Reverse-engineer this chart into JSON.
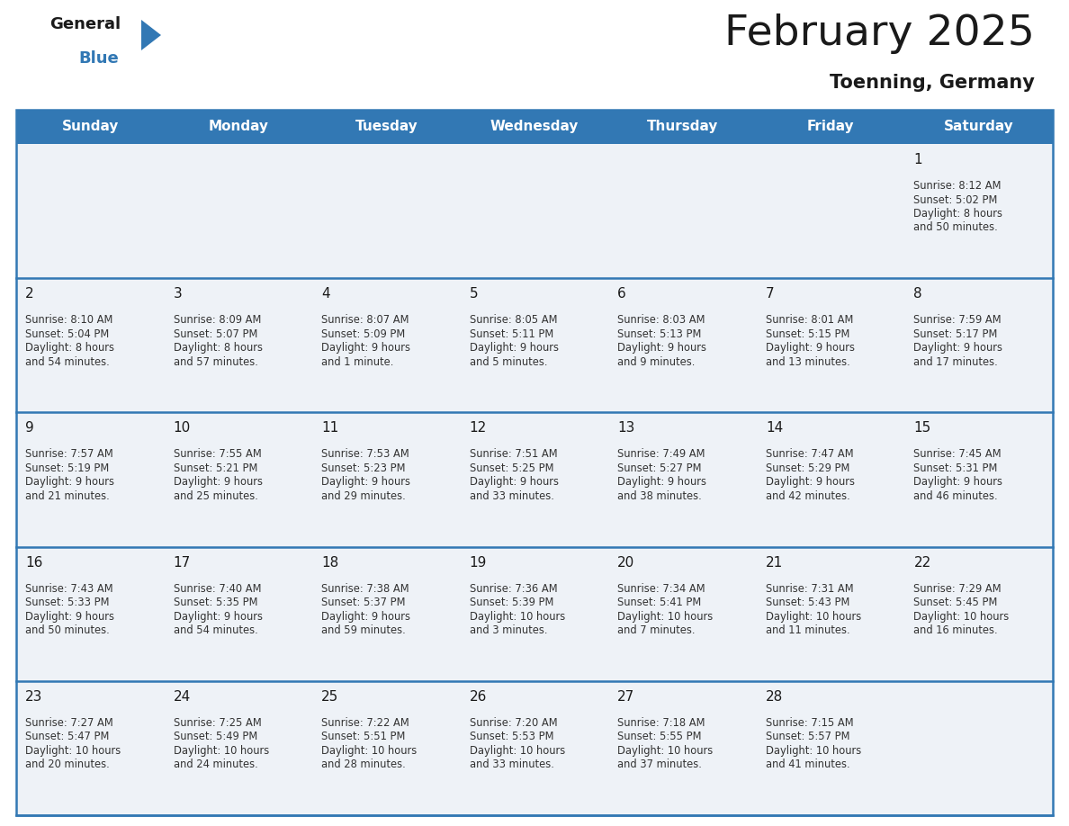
{
  "title": "February 2025",
  "subtitle": "Toenning, Germany",
  "days_of_week": [
    "Sunday",
    "Monday",
    "Tuesday",
    "Wednesday",
    "Thursday",
    "Friday",
    "Saturday"
  ],
  "header_bg": "#3278b4",
  "header_text": "#ffffff",
  "cell_bg": "#eef2f7",
  "border_color": "#3278b4",
  "text_color": "#333333",
  "day_num_color": "#1a1a1a",
  "calendar_data": [
    [
      null,
      null,
      null,
      null,
      null,
      null,
      {
        "day": "1",
        "sunrise": "Sunrise: 8:12 AM",
        "sunset": "Sunset: 5:02 PM",
        "daylight1": "Daylight: 8 hours",
        "daylight2": "and 50 minutes."
      }
    ],
    [
      {
        "day": "2",
        "sunrise": "Sunrise: 8:10 AM",
        "sunset": "Sunset: 5:04 PM",
        "daylight1": "Daylight: 8 hours",
        "daylight2": "and 54 minutes."
      },
      {
        "day": "3",
        "sunrise": "Sunrise: 8:09 AM",
        "sunset": "Sunset: 5:07 PM",
        "daylight1": "Daylight: 8 hours",
        "daylight2": "and 57 minutes."
      },
      {
        "day": "4",
        "sunrise": "Sunrise: 8:07 AM",
        "sunset": "Sunset: 5:09 PM",
        "daylight1": "Daylight: 9 hours",
        "daylight2": "and 1 minute."
      },
      {
        "day": "5",
        "sunrise": "Sunrise: 8:05 AM",
        "sunset": "Sunset: 5:11 PM",
        "daylight1": "Daylight: 9 hours",
        "daylight2": "and 5 minutes."
      },
      {
        "day": "6",
        "sunrise": "Sunrise: 8:03 AM",
        "sunset": "Sunset: 5:13 PM",
        "daylight1": "Daylight: 9 hours",
        "daylight2": "and 9 minutes."
      },
      {
        "day": "7",
        "sunrise": "Sunrise: 8:01 AM",
        "sunset": "Sunset: 5:15 PM",
        "daylight1": "Daylight: 9 hours",
        "daylight2": "and 13 minutes."
      },
      {
        "day": "8",
        "sunrise": "Sunrise: 7:59 AM",
        "sunset": "Sunset: 5:17 PM",
        "daylight1": "Daylight: 9 hours",
        "daylight2": "and 17 minutes."
      }
    ],
    [
      {
        "day": "9",
        "sunrise": "Sunrise: 7:57 AM",
        "sunset": "Sunset: 5:19 PM",
        "daylight1": "Daylight: 9 hours",
        "daylight2": "and 21 minutes."
      },
      {
        "day": "10",
        "sunrise": "Sunrise: 7:55 AM",
        "sunset": "Sunset: 5:21 PM",
        "daylight1": "Daylight: 9 hours",
        "daylight2": "and 25 minutes."
      },
      {
        "day": "11",
        "sunrise": "Sunrise: 7:53 AM",
        "sunset": "Sunset: 5:23 PM",
        "daylight1": "Daylight: 9 hours",
        "daylight2": "and 29 minutes."
      },
      {
        "day": "12",
        "sunrise": "Sunrise: 7:51 AM",
        "sunset": "Sunset: 5:25 PM",
        "daylight1": "Daylight: 9 hours",
        "daylight2": "and 33 minutes."
      },
      {
        "day": "13",
        "sunrise": "Sunrise: 7:49 AM",
        "sunset": "Sunset: 5:27 PM",
        "daylight1": "Daylight: 9 hours",
        "daylight2": "and 38 minutes."
      },
      {
        "day": "14",
        "sunrise": "Sunrise: 7:47 AM",
        "sunset": "Sunset: 5:29 PM",
        "daylight1": "Daylight: 9 hours",
        "daylight2": "and 42 minutes."
      },
      {
        "day": "15",
        "sunrise": "Sunrise: 7:45 AM",
        "sunset": "Sunset: 5:31 PM",
        "daylight1": "Daylight: 9 hours",
        "daylight2": "and 46 minutes."
      }
    ],
    [
      {
        "day": "16",
        "sunrise": "Sunrise: 7:43 AM",
        "sunset": "Sunset: 5:33 PM",
        "daylight1": "Daylight: 9 hours",
        "daylight2": "and 50 minutes."
      },
      {
        "day": "17",
        "sunrise": "Sunrise: 7:40 AM",
        "sunset": "Sunset: 5:35 PM",
        "daylight1": "Daylight: 9 hours",
        "daylight2": "and 54 minutes."
      },
      {
        "day": "18",
        "sunrise": "Sunrise: 7:38 AM",
        "sunset": "Sunset: 5:37 PM",
        "daylight1": "Daylight: 9 hours",
        "daylight2": "and 59 minutes."
      },
      {
        "day": "19",
        "sunrise": "Sunrise: 7:36 AM",
        "sunset": "Sunset: 5:39 PM",
        "daylight1": "Daylight: 10 hours",
        "daylight2": "and 3 minutes."
      },
      {
        "day": "20",
        "sunrise": "Sunrise: 7:34 AM",
        "sunset": "Sunset: 5:41 PM",
        "daylight1": "Daylight: 10 hours",
        "daylight2": "and 7 minutes."
      },
      {
        "day": "21",
        "sunrise": "Sunrise: 7:31 AM",
        "sunset": "Sunset: 5:43 PM",
        "daylight1": "Daylight: 10 hours",
        "daylight2": "and 11 minutes."
      },
      {
        "day": "22",
        "sunrise": "Sunrise: 7:29 AM",
        "sunset": "Sunset: 5:45 PM",
        "daylight1": "Daylight: 10 hours",
        "daylight2": "and 16 minutes."
      }
    ],
    [
      {
        "day": "23",
        "sunrise": "Sunrise: 7:27 AM",
        "sunset": "Sunset: 5:47 PM",
        "daylight1": "Daylight: 10 hours",
        "daylight2": "and 20 minutes."
      },
      {
        "day": "24",
        "sunrise": "Sunrise: 7:25 AM",
        "sunset": "Sunset: 5:49 PM",
        "daylight1": "Daylight: 10 hours",
        "daylight2": "and 24 minutes."
      },
      {
        "day": "25",
        "sunrise": "Sunrise: 7:22 AM",
        "sunset": "Sunset: 5:51 PM",
        "daylight1": "Daylight: 10 hours",
        "daylight2": "and 28 minutes."
      },
      {
        "day": "26",
        "sunrise": "Sunrise: 7:20 AM",
        "sunset": "Sunset: 5:53 PM",
        "daylight1": "Daylight: 10 hours",
        "daylight2": "and 33 minutes."
      },
      {
        "day": "27",
        "sunrise": "Sunrise: 7:18 AM",
        "sunset": "Sunset: 5:55 PM",
        "daylight1": "Daylight: 10 hours",
        "daylight2": "and 37 minutes."
      },
      {
        "day": "28",
        "sunrise": "Sunrise: 7:15 AM",
        "sunset": "Sunset: 5:57 PM",
        "daylight1": "Daylight: 10 hours",
        "daylight2": "and 41 minutes."
      },
      null
    ]
  ]
}
